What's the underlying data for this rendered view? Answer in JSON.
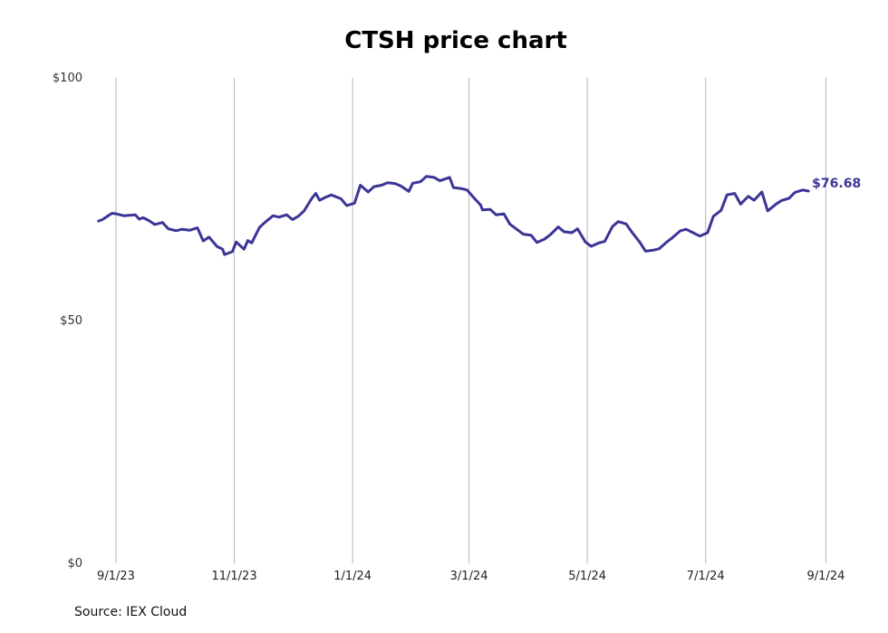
{
  "chart_data": {
    "type": "line",
    "title": "CTSH price chart",
    "xlabel": "",
    "ylabel": "",
    "ylim": [
      0,
      100
    ],
    "xlim": [
      "2023-08-18",
      "2024-09-05"
    ],
    "grid": "vertical",
    "y_ticks": [
      {
        "value": 0,
        "label": "$0"
      },
      {
        "value": 50,
        "label": "$50"
      },
      {
        "value": 100,
        "label": "$100"
      }
    ],
    "x_ticks": [
      {
        "value": "2023-09-01",
        "label": "9/1/23"
      },
      {
        "value": "2023-11-01",
        "label": "11/1/23"
      },
      {
        "value": "2024-01-01",
        "label": "1/1/24"
      },
      {
        "value": "2024-03-01",
        "label": "3/1/24"
      },
      {
        "value": "2024-05-01",
        "label": "5/1/24"
      },
      {
        "value": "2024-07-01",
        "label": "7/1/24"
      },
      {
        "value": "2024-09-01",
        "label": "9/1/24"
      }
    ],
    "series": [
      {
        "color": "#3b3596",
        "last_value_label": "$76.68",
        "points": [
          [
            "2023-08-23",
            70.5
          ],
          [
            "2023-08-25",
            70.8
          ],
          [
            "2023-08-28",
            71.6
          ],
          [
            "2023-08-30",
            72.1
          ],
          [
            "2023-09-01",
            72.0
          ],
          [
            "2023-09-05",
            71.6
          ],
          [
            "2023-09-08",
            71.7
          ],
          [
            "2023-09-11",
            71.8
          ],
          [
            "2023-09-13",
            70.9
          ],
          [
            "2023-09-15",
            71.2
          ],
          [
            "2023-09-18",
            70.6
          ],
          [
            "2023-09-21",
            69.8
          ],
          [
            "2023-09-25",
            70.2
          ],
          [
            "2023-09-28",
            68.9
          ],
          [
            "2023-10-02",
            68.5
          ],
          [
            "2023-10-05",
            68.8
          ],
          [
            "2023-10-09",
            68.6
          ],
          [
            "2023-10-13",
            69.1
          ],
          [
            "2023-10-16",
            66.4
          ],
          [
            "2023-10-19",
            67.2
          ],
          [
            "2023-10-23",
            65.3
          ],
          [
            "2023-10-26",
            64.7
          ],
          [
            "2023-10-27",
            63.6
          ],
          [
            "2023-10-31",
            64.2
          ],
          [
            "2023-11-02",
            66.2
          ],
          [
            "2023-11-06",
            64.7
          ],
          [
            "2023-11-08",
            66.5
          ],
          [
            "2023-11-10",
            66.0
          ],
          [
            "2023-11-14",
            69.2
          ],
          [
            "2023-11-17",
            70.3
          ],
          [
            "2023-11-21",
            71.6
          ],
          [
            "2023-11-24",
            71.3
          ],
          [
            "2023-11-28",
            71.8
          ],
          [
            "2023-12-01",
            70.8
          ],
          [
            "2023-12-04",
            71.5
          ],
          [
            "2023-12-07",
            72.6
          ],
          [
            "2023-12-11",
            75.2
          ],
          [
            "2023-12-13",
            76.2
          ],
          [
            "2023-12-15",
            74.8
          ],
          [
            "2023-12-18",
            75.4
          ],
          [
            "2023-12-21",
            75.9
          ],
          [
            "2023-12-26",
            75.1
          ],
          [
            "2023-12-29",
            73.7
          ],
          [
            "2024-01-02",
            74.2
          ],
          [
            "2024-01-05",
            77.9
          ],
          [
            "2024-01-09",
            76.5
          ],
          [
            "2024-01-12",
            77.6
          ],
          [
            "2024-01-16",
            77.9
          ],
          [
            "2024-01-19",
            78.4
          ],
          [
            "2024-01-23",
            78.2
          ],
          [
            "2024-01-26",
            77.7
          ],
          [
            "2024-01-30",
            76.6
          ],
          [
            "2024-02-01",
            78.3
          ],
          [
            "2024-02-05",
            78.6
          ],
          [
            "2024-02-08",
            79.7
          ],
          [
            "2024-02-12",
            79.5
          ],
          [
            "2024-02-15",
            78.8
          ],
          [
            "2024-02-20",
            79.5
          ],
          [
            "2024-02-22",
            77.4
          ],
          [
            "2024-02-26",
            77.2
          ],
          [
            "2024-02-29",
            76.9
          ],
          [
            "2024-03-04",
            75.1
          ],
          [
            "2024-03-07",
            73.8
          ],
          [
            "2024-03-08",
            72.8
          ],
          [
            "2024-03-12",
            72.9
          ],
          [
            "2024-03-15",
            71.8
          ],
          [
            "2024-03-19",
            72.0
          ],
          [
            "2024-03-22",
            69.9
          ],
          [
            "2024-03-26",
            68.7
          ],
          [
            "2024-03-29",
            67.8
          ],
          [
            "2024-04-02",
            67.6
          ],
          [
            "2024-04-05",
            66.1
          ],
          [
            "2024-04-09",
            66.8
          ],
          [
            "2024-04-12",
            67.7
          ],
          [
            "2024-04-16",
            69.3
          ],
          [
            "2024-04-19",
            68.3
          ],
          [
            "2024-04-23",
            68.1
          ],
          [
            "2024-04-26",
            68.9
          ],
          [
            "2024-04-30",
            66.2
          ],
          [
            "2024-05-03",
            65.3
          ],
          [
            "2024-05-07",
            66.0
          ],
          [
            "2024-05-10",
            66.3
          ],
          [
            "2024-05-14",
            69.4
          ],
          [
            "2024-05-17",
            70.4
          ],
          [
            "2024-05-21",
            69.9
          ],
          [
            "2024-05-24",
            68.2
          ],
          [
            "2024-05-28",
            66.2
          ],
          [
            "2024-05-31",
            64.3
          ],
          [
            "2024-06-04",
            64.5
          ],
          [
            "2024-06-07",
            64.8
          ],
          [
            "2024-06-11",
            66.2
          ],
          [
            "2024-06-14",
            67.1
          ],
          [
            "2024-06-18",
            68.5
          ],
          [
            "2024-06-21",
            68.8
          ],
          [
            "2024-06-25",
            68.0
          ],
          [
            "2024-06-28",
            67.4
          ],
          [
            "2024-07-02",
            68.1
          ],
          [
            "2024-07-05",
            71.5
          ],
          [
            "2024-07-09",
            72.7
          ],
          [
            "2024-07-12",
            75.9
          ],
          [
            "2024-07-16",
            76.2
          ],
          [
            "2024-07-19",
            74.0
          ],
          [
            "2024-07-23",
            75.6
          ],
          [
            "2024-07-26",
            74.8
          ],
          [
            "2024-07-30",
            76.5
          ],
          [
            "2024-08-02",
            72.6
          ],
          [
            "2024-08-06",
            73.9
          ],
          [
            "2024-08-09",
            74.7
          ],
          [
            "2024-08-13",
            75.2
          ],
          [
            "2024-08-16",
            76.4
          ],
          [
            "2024-08-20",
            76.9
          ],
          [
            "2024-08-23",
            76.68
          ]
        ]
      }
    ]
  },
  "footer": {
    "source": "Source: IEX Cloud"
  }
}
